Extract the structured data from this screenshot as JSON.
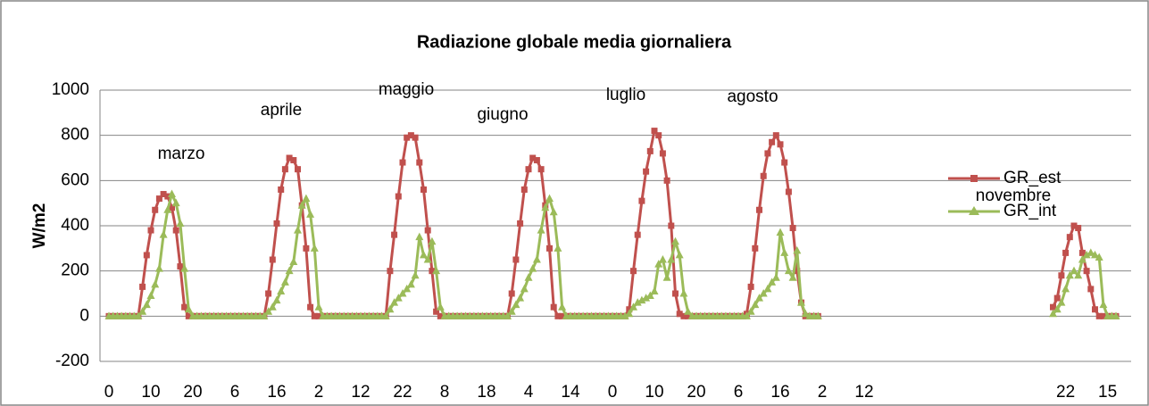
{
  "chart_data": {
    "type": "line",
    "title": "Radiazione globale media giornaliera",
    "y_label": "W/m2",
    "categories": [
      "0",
      null,
      null,
      null,
      null,
      null,
      null,
      null,
      null,
      null,
      "10",
      null,
      null,
      null,
      null,
      null,
      null,
      null,
      null,
      null,
      "20",
      null,
      null,
      null,
      null,
      null,
      null,
      null,
      null,
      null,
      "6",
      null,
      null,
      null,
      null,
      null,
      null,
      null,
      null,
      null,
      "16",
      null,
      null,
      null,
      null,
      null,
      null,
      null,
      null,
      null,
      "2",
      null,
      null,
      null,
      null,
      null,
      null,
      null,
      null,
      null,
      "12",
      null,
      null,
      null,
      null,
      null,
      null,
      null,
      null,
      null,
      "22",
      null,
      null,
      null,
      null,
      null,
      null,
      null,
      null,
      null,
      "8",
      null,
      null,
      null,
      null,
      null,
      null,
      null,
      null,
      null,
      "18",
      null,
      null,
      null,
      null,
      null,
      null,
      null,
      null,
      null,
      "4",
      null,
      null,
      null,
      null,
      null,
      null,
      null,
      null,
      null,
      "14",
      null,
      null,
      null,
      null,
      null,
      null,
      null,
      null,
      null,
      "0",
      null,
      null,
      null,
      null,
      null,
      null,
      null,
      null,
      null,
      "10",
      null,
      null,
      null,
      null,
      null,
      null,
      null,
      null,
      null,
      "20",
      null,
      null,
      null,
      null,
      null,
      null,
      null,
      null,
      null,
      "6",
      null,
      null,
      null,
      null,
      null,
      null,
      null,
      null,
      null,
      "16",
      null,
      null,
      null,
      null,
      null,
      null,
      null,
      null,
      null,
      "2",
      null,
      null,
      null,
      null,
      null,
      null,
      null,
      null,
      null,
      "12",
      null,
      null,
      null,
      null,
      null,
      null,
      null,
      null,
      null,
      null,
      null,
      null,
      null,
      null,
      null,
      null,
      null,
      null,
      null,
      null,
      null,
      null,
      null,
      null,
      null,
      null,
      null,
      null,
      null,
      null,
      null,
      null,
      null,
      null,
      null,
      null,
      null,
      null,
      null,
      null,
      null,
      null,
      null,
      null,
      null,
      null,
      null,
      "22",
      null,
      null,
      null,
      null,
      null,
      null,
      null,
      null,
      null,
      "15",
      null,
      null
    ],
    "series": [
      {
        "name": "GR_est",
        "color": "#c0504d",
        "marker": "square",
        "values": [
          0,
          0,
          0,
          0,
          0,
          0,
          0,
          0,
          130,
          270,
          380,
          470,
          520,
          540,
          530,
          480,
          380,
          220,
          40,
          0,
          0,
          0,
          0,
          0,
          0,
          0,
          0,
          0,
          0,
          0,
          0,
          0,
          0,
          0,
          0,
          0,
          0,
          0,
          100,
          250,
          410,
          560,
          650,
          700,
          690,
          650,
          490,
          300,
          40,
          0,
          0,
          0,
          0,
          0,
          0,
          0,
          0,
          0,
          0,
          0,
          0,
          0,
          0,
          0,
          0,
          0,
          0,
          200,
          360,
          530,
          680,
          790,
          800,
          790,
          680,
          560,
          380,
          200,
          20,
          0,
          0,
          0,
          0,
          0,
          0,
          0,
          0,
          0,
          0,
          0,
          0,
          0,
          0,
          0,
          0,
          0,
          100,
          250,
          410,
          560,
          650,
          700,
          690,
          650,
          490,
          300,
          40,
          0,
          0,
          0,
          0,
          0,
          0,
          0,
          0,
          0,
          0,
          0,
          0,
          0,
          0,
          0,
          0,
          0,
          30,
          200,
          360,
          510,
          640,
          730,
          820,
          800,
          720,
          600,
          400,
          100,
          10,
          0,
          0,
          0,
          0,
          0,
          0,
          0,
          0,
          0,
          0,
          0,
          0,
          0,
          0,
          0,
          10,
          130,
          300,
          470,
          620,
          720,
          770,
          800,
          760,
          680,
          550,
          390,
          200,
          60,
          0,
          0,
          0,
          0,
          null,
          null,
          null,
          null,
          null,
          null,
          null,
          null,
          null,
          null,
          null,
          null,
          null,
          null,
          null,
          null,
          null,
          null,
          null,
          null,
          null,
          null,
          null,
          null,
          null,
          null,
          null,
          null,
          null,
          null,
          null,
          null,
          null,
          null,
          null,
          null,
          null,
          null,
          null,
          null,
          null,
          null,
          null,
          null,
          null,
          null,
          null,
          null,
          null,
          null,
          null,
          null,
          null,
          null,
          null,
          40,
          80,
          180,
          280,
          350,
          400,
          390,
          280,
          200,
          120,
          30,
          0,
          0,
          0,
          0,
          0
        ]
      },
      {
        "name": "GR_int",
        "color": "#9bbb59",
        "marker": "triangle",
        "values": [
          0,
          0,
          0,
          0,
          0,
          0,
          0,
          0,
          20,
          50,
          90,
          140,
          210,
          360,
          470,
          540,
          500,
          410,
          210,
          30,
          0,
          0,
          0,
          0,
          0,
          0,
          0,
          0,
          0,
          0,
          0,
          0,
          0,
          0,
          0,
          0,
          0,
          0,
          20,
          40,
          70,
          110,
          150,
          200,
          240,
          380,
          490,
          520,
          450,
          300,
          40,
          0,
          0,
          0,
          0,
          0,
          0,
          0,
          0,
          0,
          0,
          0,
          0,
          0,
          0,
          0,
          0,
          30,
          60,
          80,
          100,
          120,
          140,
          180,
          350,
          270,
          250,
          330,
          200,
          40,
          0,
          0,
          0,
          0,
          0,
          0,
          0,
          0,
          0,
          0,
          0,
          0,
          0,
          0,
          0,
          0,
          20,
          50,
          80,
          120,
          170,
          210,
          250,
          380,
          480,
          520,
          460,
          300,
          40,
          0,
          0,
          0,
          0,
          0,
          0,
          0,
          0,
          0,
          0,
          0,
          0,
          0,
          0,
          0,
          10,
          40,
          60,
          70,
          80,
          90,
          110,
          230,
          250,
          170,
          250,
          330,
          270,
          100,
          20,
          0,
          0,
          0,
          0,
          0,
          0,
          0,
          0,
          0,
          0,
          0,
          0,
          0,
          0,
          20,
          50,
          80,
          100,
          120,
          150,
          170,
          370,
          280,
          200,
          170,
          290,
          60,
          10,
          0,
          0,
          0,
          null,
          null,
          null,
          null,
          null,
          null,
          null,
          null,
          null,
          null,
          null,
          null,
          null,
          null,
          null,
          null,
          null,
          null,
          null,
          null,
          null,
          null,
          null,
          null,
          null,
          null,
          null,
          null,
          null,
          null,
          null,
          null,
          null,
          null,
          null,
          null,
          null,
          null,
          null,
          null,
          null,
          null,
          null,
          null,
          null,
          null,
          null,
          null,
          null,
          null,
          null,
          null,
          null,
          null,
          null,
          10,
          30,
          60,
          120,
          180,
          200,
          180,
          250,
          270,
          280,
          270,
          260,
          50,
          0,
          0,
          0
        ]
      }
    ],
    "annotations": [
      "marzo",
      "aprile",
      "maggio",
      "giugno",
      "luglio",
      "agosto",
      "novembre"
    ],
    "ylim": [
      -200,
      1000
    ],
    "yticks": [
      -200,
      0,
      200,
      400,
      600,
      800,
      1000
    ],
    "grid": true,
    "legend": "top-right"
  }
}
